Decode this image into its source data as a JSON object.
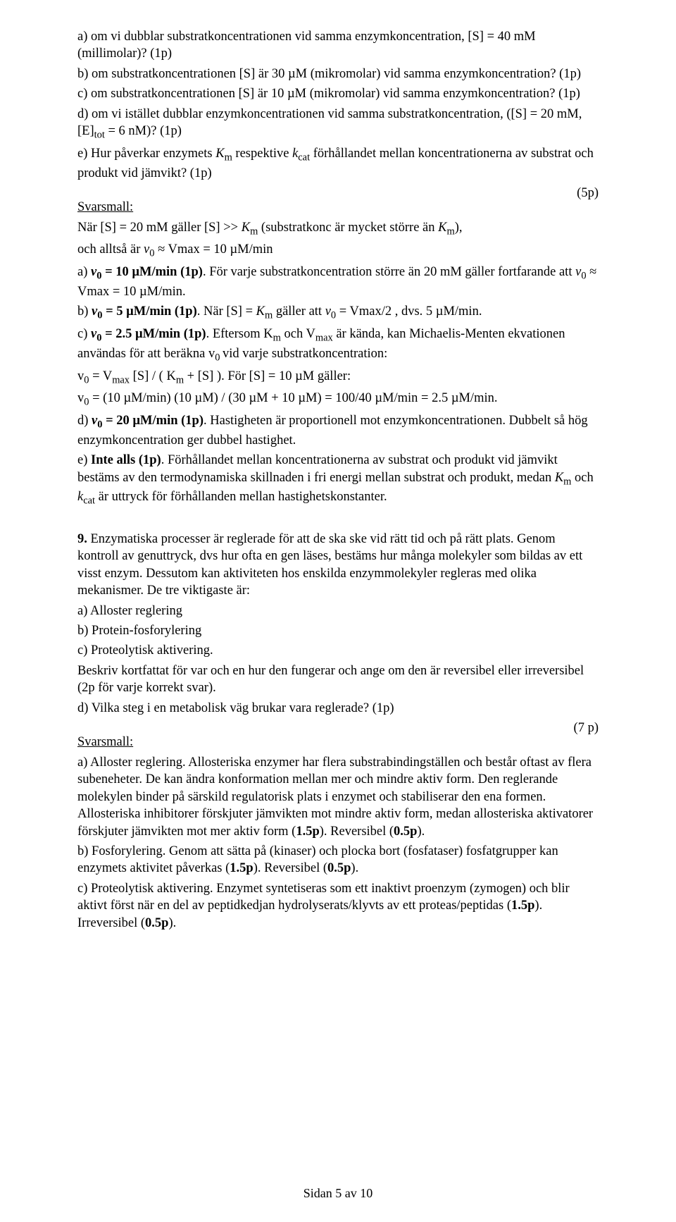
{
  "q8": {
    "a": "a) om vi dubblar substratkoncentrationen vid samma enzymkoncentration, [S] = 40 mM (millimolar)? (1p)",
    "b": "b) om substratkoncentrationen [S] är 30 µM (mikromolar) vid samma enzymkoncentration? (1p)",
    "c": "c) om substratkoncentrationen [S] är 10 µM (mikromolar) vid samma enzymkoncentration? (1p)",
    "d_pre": "d) om vi istället dubblar enzymkoncentrationen vid samma substratkoncentration, ([S] = 20 mM, [E]",
    "d_sub": "tot",
    "d_post": " = 6 nM)? (1p)",
    "e_pre": "e) Hur påverkar enzymets ",
    "e_km": "K",
    "e_km_sub": "m",
    "e_mid1": " respektive ",
    "e_kcat": "k",
    "e_kcat_sub": "cat",
    "e_mid2": " förhållandet mellan koncentrationerna av substrat och produkt vid jämvikt? (1p)",
    "points": "(5p)",
    "svarsmall": "Svarsmall:",
    "ans_intro_pre": "När [S] = 20 mM gäller [S] >> ",
    "ans_intro_Km": "K",
    "ans_intro_Km_sub": "m",
    "ans_intro_mid": " (substratkonc är mycket större än ",
    "ans_intro_Km2": "K",
    "ans_intro_Km2_sub": "m",
    "ans_intro_post": "),",
    "ans_intro2_pre": "och alltså är ",
    "ans_intro2_v0": "v",
    "ans_intro2_v0_sub": "0",
    "ans_intro2_post": " ≈ Vmax = 10 µM/min",
    "ans_a_pre": "a) ",
    "ans_a_v0": "v",
    "ans_a_v0_sub": "0",
    "ans_a_bold": " = 10 µM/min (1p)",
    "ans_a_post": ". För varje substratkoncentration större än 20 mM gäller fortfarande att ",
    "ans_a_v02": "v",
    "ans_a_v02_sub": "0",
    "ans_a_tail": " ≈ Vmax = 10 µM/min.",
    "ans_b_pre": "b) ",
    "ans_b_v0": "v",
    "ans_b_v0_sub": "0",
    "ans_b_bold": " = 5 µM/min (1p)",
    "ans_b_mid": ". När [S] = ",
    "ans_b_Km": "K",
    "ans_b_Km_sub": "m",
    "ans_b_mid2": " gäller att ",
    "ans_b_v02": "v",
    "ans_b_v02_sub": "0",
    "ans_b_tail": " = Vmax/2 , dvs. 5 µM/min.",
    "ans_c_pre": "c) ",
    "ans_c_v0": "v",
    "ans_c_v0_sub": "0",
    "ans_c_bold": " = 2.5 µM/min (1p)",
    "ans_c_mid": ". Eftersom K",
    "ans_c_m": "m",
    "ans_c_mid2": " och V",
    "ans_c_max": "max",
    "ans_c_mid3": " är kända, kan Michaelis-Menten ekvationen användas för att beräkna v",
    "ans_c_0": "0 ",
    "ans_c_tail": "vid varje substratkoncentration:",
    "ans_c_eq1_pre": "v",
    "ans_c_eq1_0": "0",
    "ans_c_eq1_mid": " = V",
    "ans_c_eq1_max": "max",
    "ans_c_eq1_mid2": " [S] / ( K",
    "ans_c_eq1_m": "m",
    "ans_c_eq1_tail": " + [S] ). För [S] = 10 µM gäller:",
    "ans_c_eq2_pre": "v",
    "ans_c_eq2_0": "0",
    "ans_c_eq2_tail": " = (10 µM/min) (10 µM) / (30 µM + 10 µM) = 100/40 µM/min = 2.5 µM/min.",
    "ans_d_pre": "d) ",
    "ans_d_v0": "v",
    "ans_d_v0_sub": "0",
    "ans_d_bold": " = 20 µM/min (1p)",
    "ans_d_tail": ". Hastigheten är proportionell mot enzymkoncentrationen. Dubbelt så hög enzymkoncentration ger dubbel hastighet.",
    "ans_e_pre": "e) ",
    "ans_e_bold": "Inte alls (1p)",
    "ans_e_mid": ". Förhållandet mellan koncentrationerna av substrat och produkt vid jämvikt bestäms av den termodynamiska skillnaden i fri energi mellan substrat och produkt, medan ",
    "ans_e_Km": "K",
    "ans_e_Km_sub": "m",
    "ans_e_and": " och ",
    "ans_e_kcat": "k",
    "ans_e_kcat_sub": "cat",
    "ans_e_tail": " är uttryck för förhållanden mellan hastighetskonstanter."
  },
  "q9": {
    "num": "9.",
    "intro": " Enzymatiska processer är reglerade för att de ska ske vid rätt tid och på rätt plats. Genom kontroll av genuttryck, dvs hur ofta en gen läses, bestäms hur många molekyler som bildas av ett visst enzym. Dessutom kan aktiviteten hos enskilda enzymmolekyler regleras med olika mekanismer. De tre viktigaste är:",
    "a": "a) Alloster reglering",
    "b": "b) Protein-fosforylering",
    "c": "c) Proteolytisk aktivering.",
    "desc": "Beskriv kortfattat för var och en hur den fungerar och ange om den är reversibel eller irreversibel (2p för varje korrekt svar).",
    "d": "d) Vilka steg i en metabolisk väg brukar vara reglerade? (1p)",
    "points": "(7 p)",
    "svarsmall": "Svarsmall:",
    "ans_a_pre": "a) Alloster reglering. Allosteriska enzymer har flera substrabindingställen och består oftast av flera subeneheter. De kan ändra konformation mellan mer och mindre aktiv form. Den reglerande molekylen binder på särskild regulatorisk plats i enzymet och stabiliserar den ena formen. Allosteriska inhibitorer förskjuter jämvikten mot mindre aktiv form, medan allosteriska aktivatorer förskjuter jämvikten mot mer aktiv form (",
    "ans_a_b1": "1.5p",
    "ans_a_mid": "). Reversibel (",
    "ans_a_b2": "0.5p",
    "ans_a_tail": ").",
    "ans_b_pre": "b) Fosforylering. Genom att sätta på (kinaser) och plocka bort (fosfataser) fosfatgrupper kan enzymets aktivitet påverkas (",
    "ans_b_b1": "1.5p",
    "ans_b_mid": "). Reversibel (",
    "ans_b_b2": "0.5p",
    "ans_b_tail": ").",
    "ans_c_pre": "c) Proteolytisk aktivering. Enzymet syntetiseras som ett inaktivt proenzym (zymogen) och blir aktivt först när en del av peptidkedjan hydrolyserats/klyvts av ett proteas/peptidas (",
    "ans_c_b1": "1.5p",
    "ans_c_mid": "). Irreversibel (",
    "ans_c_b2": "0.5p",
    "ans_c_tail": ")."
  },
  "footer": "Sidan 5 av 10"
}
